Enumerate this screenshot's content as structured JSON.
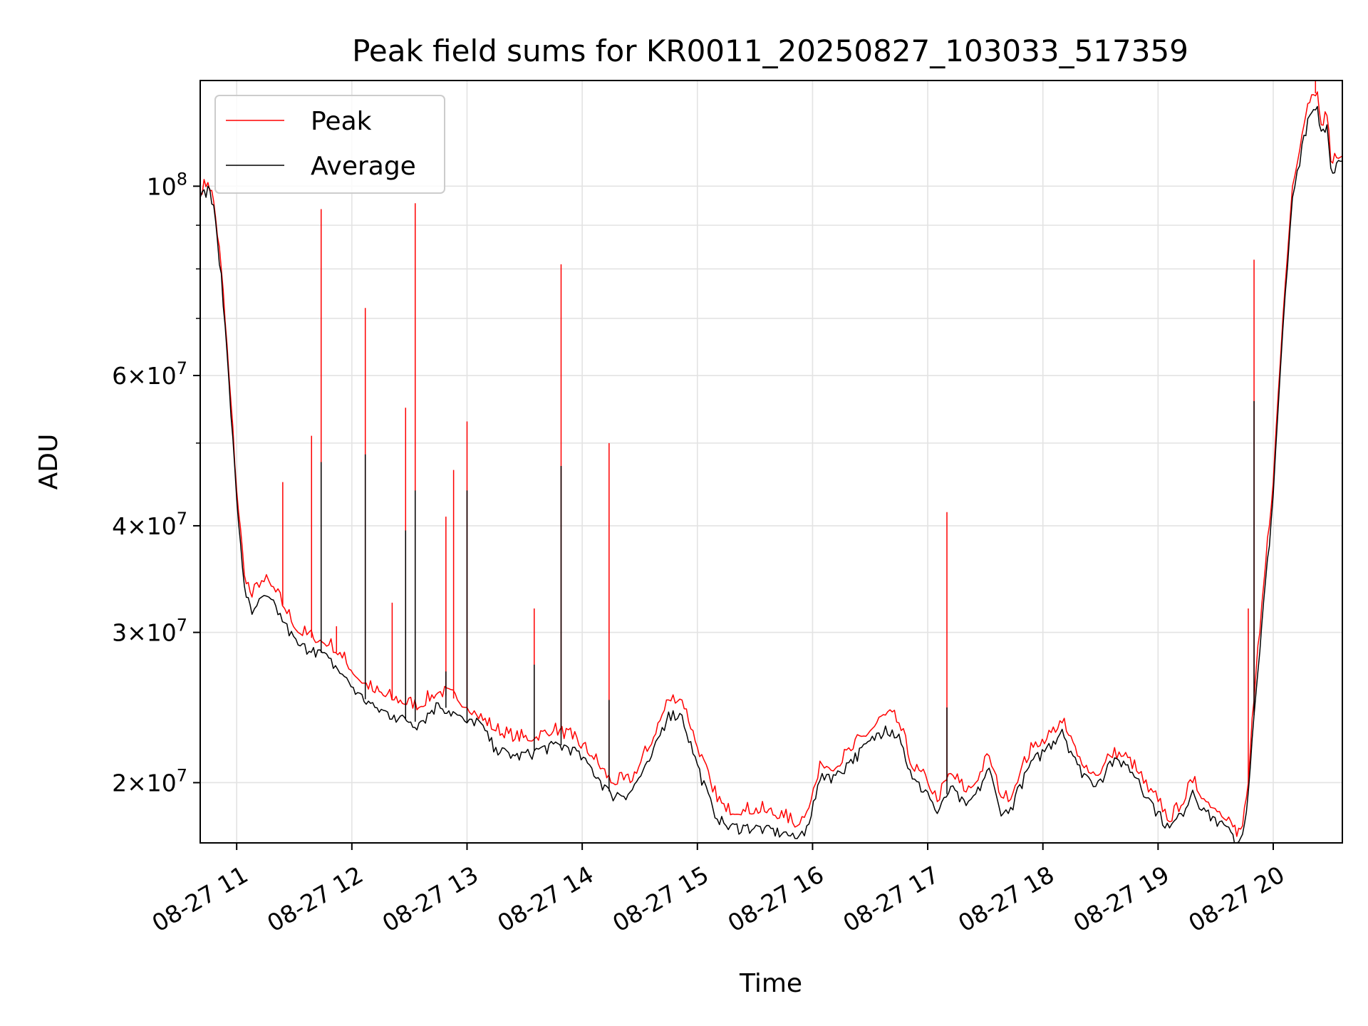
{
  "chart_data": {
    "type": "line",
    "title": "Peak field sums for KR0011_20250827_103033_517359",
    "xlabel": "Time",
    "ylabel": "ADU",
    "x_range": [
      "2025-08-27 10:41",
      "2025-08-27 20:36"
    ],
    "ylim": [
      17000000,
      133000000
    ],
    "y_scale": "log",
    "grid": true,
    "legend_position": "top-left",
    "x_ticks": [
      "08-27 11",
      "08-27 12",
      "08-27 13",
      "08-27 14",
      "08-27 15",
      "08-27 16",
      "08-27 17",
      "08-27 18",
      "08-27 19",
      "08-27 20"
    ],
    "y_ticks_major": [
      {
        "value": 100000000,
        "mantissa": "",
        "exp": "8"
      },
      {
        "value": 60000000,
        "mantissa": "6",
        "exp": "7"
      },
      {
        "value": 40000000,
        "mantissa": "4",
        "exp": "7"
      },
      {
        "value": 30000000,
        "mantissa": "3",
        "exp": "7"
      },
      {
        "value": 20000000,
        "mantissa": "2",
        "exp": "7"
      }
    ],
    "y_gridlines_minor": [
      90000000,
      80000000,
      70000000,
      50000000
    ],
    "series": [
      {
        "name": "Peak",
        "color": "#ff0000",
        "points": [
          [
            "10:41",
            98000000
          ],
          [
            "10:45",
            101000000
          ],
          [
            "10:48",
            96000000
          ],
          [
            "10:52",
            80000000
          ],
          [
            "10:56",
            60000000
          ],
          [
            "11:00",
            44000000
          ],
          [
            "11:04",
            35000000
          ],
          [
            "11:08",
            33000000
          ],
          [
            "11:13",
            34500000
          ],
          [
            "11:18",
            34000000
          ],
          [
            "11:25",
            32000000
          ],
          [
            "11:32",
            30000000
          ],
          [
            "11:40",
            29500000
          ],
          [
            "11:48",
            29000000
          ],
          [
            "11:55",
            28000000
          ],
          [
            "12:03",
            26500000
          ],
          [
            "12:12",
            25500000
          ],
          [
            "12:22",
            25000000
          ],
          [
            "12:35",
            24500000
          ],
          [
            "12:45",
            25500000
          ],
          [
            "12:55",
            25000000
          ],
          [
            "13:00",
            24500000
          ],
          [
            "13:05",
            24000000
          ],
          [
            "13:15",
            23000000
          ],
          [
            "13:25",
            22500000
          ],
          [
            "13:35",
            22500000
          ],
          [
            "13:45",
            23000000
          ],
          [
            "13:55",
            22500000
          ],
          [
            "14:05",
            21500000
          ],
          [
            "14:15",
            20000000
          ],
          [
            "14:25",
            20000000
          ],
          [
            "14:35",
            22000000
          ],
          [
            "14:45",
            25000000
          ],
          [
            "14:52",
            25000000
          ],
          [
            "15:00",
            22000000
          ],
          [
            "15:08",
            19500000
          ],
          [
            "15:15",
            18500000
          ],
          [
            "15:25",
            18500000
          ],
          [
            "15:35",
            18500000
          ],
          [
            "15:45",
            18200000
          ],
          [
            "15:52",
            17800000
          ],
          [
            "15:57",
            18500000
          ],
          [
            "16:05",
            21000000
          ],
          [
            "16:12",
            20800000
          ],
          [
            "16:20",
            21800000
          ],
          [
            "16:30",
            23000000
          ],
          [
            "16:38",
            24000000
          ],
          [
            "16:45",
            23500000
          ],
          [
            "16:52",
            20800000
          ],
          [
            "17:00",
            20000000
          ],
          [
            "17:05",
            19000000
          ],
          [
            "17:12",
            20500000
          ],
          [
            "17:20",
            19500000
          ],
          [
            "17:25",
            20000000
          ],
          [
            "17:32",
            21500000
          ],
          [
            "17:37",
            19500000
          ],
          [
            "17:42",
            19000000
          ],
          [
            "17:48",
            20500000
          ],
          [
            "17:55",
            22000000
          ],
          [
            "18:02",
            22500000
          ],
          [
            "18:10",
            23500000
          ],
          [
            "18:18",
            21500000
          ],
          [
            "18:25",
            20500000
          ],
          [
            "18:30",
            20500000
          ],
          [
            "18:35",
            21500000
          ],
          [
            "18:42",
            21500000
          ],
          [
            "18:50",
            20500000
          ],
          [
            "18:55",
            19500000
          ],
          [
            "19:00",
            19000000
          ],
          [
            "19:06",
            18000000
          ],
          [
            "19:12",
            18800000
          ],
          [
            "19:18",
            20000000
          ],
          [
            "19:25",
            19000000
          ],
          [
            "19:32",
            18500000
          ],
          [
            "19:38",
            18000000
          ],
          [
            "19:41",
            17300000
          ],
          [
            "19:44",
            17800000
          ],
          [
            "19:47",
            20000000
          ],
          [
            "19:50",
            25000000
          ],
          [
            "19:53",
            30000000
          ],
          [
            "19:56",
            36000000
          ],
          [
            "20:00",
            45000000
          ],
          [
            "20:05",
            70000000
          ],
          [
            "20:10",
            100000000
          ],
          [
            "20:15",
            115000000
          ],
          [
            "20:18",
            125000000
          ],
          [
            "20:21",
            128000000
          ],
          [
            "20:23",
            129000000
          ],
          [
            "20:25",
            118000000
          ],
          [
            "20:28",
            121000000
          ],
          [
            "20:30",
            107000000
          ],
          [
            "20:33",
            108000000
          ],
          [
            "20:36",
            108500000
          ]
        ],
        "spikes": [
          [
            "11:24",
            45000000
          ],
          [
            "11:39",
            51000000
          ],
          [
            "11:44",
            94000000
          ],
          [
            "11:52",
            30500000
          ],
          [
            "12:07",
            72000000
          ],
          [
            "12:21",
            32500000
          ],
          [
            "12:28",
            55000000
          ],
          [
            "12:33",
            95500000
          ],
          [
            "12:49",
            41000000
          ],
          [
            "12:53",
            46500000
          ],
          [
            "13:00",
            53000000
          ],
          [
            "13:35",
            32000000
          ],
          [
            "13:49",
            81000000
          ],
          [
            "14:14",
            50000000
          ],
          [
            "17:10",
            41500000
          ],
          [
            "19:47",
            32000000
          ],
          [
            "19:50",
            82000000
          ],
          [
            "20:22",
            133000000
          ]
        ]
      },
      {
        "name": "Average",
        "color": "#000000",
        "points": [
          [
            "10:41",
            97000000
          ],
          [
            "10:45",
            100000000
          ],
          [
            "10:48",
            95000000
          ],
          [
            "10:52",
            79000000
          ],
          [
            "10:56",
            59000000
          ],
          [
            "11:00",
            43000000
          ],
          [
            "11:04",
            34000000
          ],
          [
            "11:08",
            31500000
          ],
          [
            "11:13",
            33000000
          ],
          [
            "11:18",
            32800000
          ],
          [
            "11:25",
            30800000
          ],
          [
            "11:32",
            29000000
          ],
          [
            "11:40",
            28800000
          ],
          [
            "11:48",
            28000000
          ],
          [
            "11:55",
            26800000
          ],
          [
            "12:03",
            25500000
          ],
          [
            "12:12",
            24500000
          ],
          [
            "12:22",
            24000000
          ],
          [
            "12:35",
            23500000
          ],
          [
            "12:45",
            24800000
          ],
          [
            "12:55",
            24000000
          ],
          [
            "13:00",
            23500000
          ],
          [
            "13:05",
            23800000
          ],
          [
            "13:15",
            22000000
          ],
          [
            "13:25",
            21500000
          ],
          [
            "13:35",
            21800000
          ],
          [
            "13:45",
            22200000
          ],
          [
            "13:55",
            22000000
          ],
          [
            "14:05",
            20800000
          ],
          [
            "14:15",
            19400000
          ],
          [
            "14:25",
            19500000
          ],
          [
            "14:35",
            21200000
          ],
          [
            "14:45",
            24200000
          ],
          [
            "14:52",
            24000000
          ],
          [
            "15:00",
            21000000
          ],
          [
            "15:08",
            18700000
          ],
          [
            "15:15",
            17800000
          ],
          [
            "15:25",
            17800000
          ],
          [
            "15:35",
            17700000
          ],
          [
            "15:45",
            17500000
          ],
          [
            "15:52",
            17200000
          ],
          [
            "15:57",
            17800000
          ],
          [
            "16:05",
            20500000
          ],
          [
            "16:12",
            20400000
          ],
          [
            "16:20",
            21300000
          ],
          [
            "16:30",
            22400000
          ],
          [
            "16:38",
            23300000
          ],
          [
            "16:45",
            22800000
          ],
          [
            "16:52",
            20200000
          ],
          [
            "17:00",
            19500000
          ],
          [
            "17:05",
            18400000
          ],
          [
            "17:12",
            19800000
          ],
          [
            "17:20",
            18800000
          ],
          [
            "17:25",
            19400000
          ],
          [
            "17:32",
            20800000
          ],
          [
            "17:37",
            18800000
          ],
          [
            "17:42",
            18400000
          ],
          [
            "17:48",
            19900000
          ],
          [
            "17:55",
            21300000
          ],
          [
            "18:02",
            22000000
          ],
          [
            "18:10",
            23100000
          ],
          [
            "18:18",
            21000000
          ],
          [
            "18:25",
            20100000
          ],
          [
            "18:30",
            20200000
          ],
          [
            "18:35",
            21200000
          ],
          [
            "18:42",
            21200000
          ],
          [
            "18:50",
            20200000
          ],
          [
            "18:55",
            19200000
          ],
          [
            "19:00",
            18500000
          ],
          [
            "19:06",
            17700000
          ],
          [
            "19:12",
            18400000
          ],
          [
            "19:18",
            19600000
          ],
          [
            "19:25",
            18500000
          ],
          [
            "19:32",
            18000000
          ],
          [
            "19:38",
            17500000
          ],
          [
            "19:41",
            17000000
          ],
          [
            "19:44",
            17400000
          ],
          [
            "19:47",
            19500000
          ],
          [
            "19:50",
            24000000
          ],
          [
            "19:53",
            28500000
          ],
          [
            "19:56",
            34500000
          ],
          [
            "20:00",
            43500000
          ],
          [
            "20:05",
            68000000
          ],
          [
            "20:10",
            97000000
          ],
          [
            "20:15",
            112000000
          ],
          [
            "20:18",
            120000000
          ],
          [
            "20:21",
            123000000
          ],
          [
            "20:23",
            124000000
          ],
          [
            "20:25",
            116000000
          ],
          [
            "20:28",
            118000000
          ],
          [
            "20:30",
            105000000
          ],
          [
            "20:33",
            106500000
          ],
          [
            "20:36",
            107000000
          ]
        ],
        "spikes": [
          [
            "11:44",
            47500000
          ],
          [
            "12:07",
            48500000
          ],
          [
            "12:28",
            39500000
          ],
          [
            "12:33",
            44000000
          ],
          [
            "12:49",
            27000000
          ],
          [
            "13:00",
            44000000
          ],
          [
            "13:35",
            27500000
          ],
          [
            "13:49",
            47000000
          ],
          [
            "14:14",
            25000000
          ],
          [
            "17:10",
            24500000
          ],
          [
            "19:50",
            56000000
          ]
        ]
      }
    ]
  }
}
